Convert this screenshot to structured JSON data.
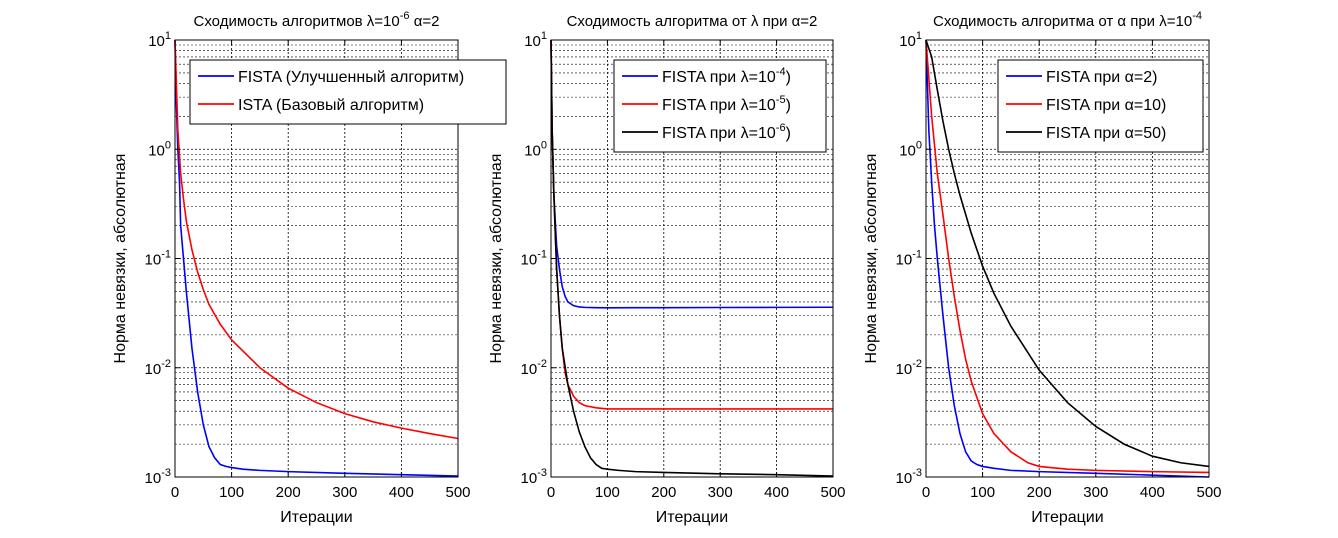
{
  "chart_data": [
    {
      "type": "line",
      "title": "Сходимость алгоритмов λ=10^-6 α=2",
      "title_parts": {
        "a": "Сходимость алгоритмов ",
        "sym1": "λ",
        "b": "=10",
        "sup": "-6",
        "c": " ",
        "sym2": "α",
        "d": "=2"
      },
      "xlabel": "Итерации",
      "ylabel": "Норма невязки, абсолютная",
      "xlim": [
        0,
        500
      ],
      "ylim": [
        0.001,
        10
      ],
      "yscale": "log",
      "grid": true,
      "legend_position": "top-right",
      "xticks": [
        "0",
        "100",
        "200",
        "300",
        "400",
        "500"
      ],
      "yticks": [
        {
          "base": "10",
          "exp": "-3"
        },
        {
          "base": "10",
          "exp": "-2"
        },
        {
          "base": "10",
          "exp": "-1"
        },
        {
          "base": "10",
          "exp": "0"
        },
        {
          "base": "10",
          "exp": "1"
        }
      ],
      "series": [
        {
          "name": "FISTA (Улучшенный алгоритм)",
          "legend_parts": {
            "a": "FISTA (Улучшенный алгоритм)"
          },
          "color": "#0000ff",
          "x": [
            0,
            2,
            5,
            8,
            10,
            15,
            20,
            30,
            40,
            50,
            60,
            70,
            80,
            90,
            100,
            120,
            150,
            200,
            300,
            400,
            500
          ],
          "y": [
            10,
            3,
            1,
            0.5,
            0.2,
            0.1,
            0.05,
            0.015,
            0.006,
            0.003,
            0.0019,
            0.0015,
            0.0013,
            0.00125,
            0.00122,
            0.00118,
            0.00115,
            0.00112,
            0.00108,
            0.00105,
            0.00102
          ]
        },
        {
          "name": "ISTA (Базовый алгоритм)",
          "legend_parts": {
            "a": "ISTA (Базовый алгоритм)"
          },
          "color": "#ff0000",
          "x": [
            0,
            5,
            10,
            15,
            20,
            30,
            40,
            50,
            60,
            80,
            100,
            150,
            200,
            250,
            300,
            350,
            400,
            450,
            500
          ],
          "y": [
            10,
            1.5,
            0.6,
            0.35,
            0.22,
            0.12,
            0.075,
            0.052,
            0.038,
            0.025,
            0.018,
            0.01,
            0.0065,
            0.0048,
            0.0038,
            0.0032,
            0.0028,
            0.0025,
            0.00225
          ]
        }
      ]
    },
    {
      "type": "line",
      "title": "Сходимость алгоритма от λ при α=2",
      "title_parts": {
        "a": "Сходимость алгоритма от ",
        "sym1": "λ",
        "b": " при ",
        "sup": "",
        "c": "",
        "sym2": "α",
        "d": "=2"
      },
      "xlabel": "Итерации",
      "ylabel": "Норма невязки, абсолютная",
      "xlim": [
        0,
        500
      ],
      "ylim": [
        0.001,
        10
      ],
      "yscale": "log",
      "grid": true,
      "legend_position": "top-right",
      "xticks": [
        "0",
        "100",
        "200",
        "300",
        "400",
        "500"
      ],
      "yticks": [
        {
          "base": "10",
          "exp": "-3"
        },
        {
          "base": "10",
          "exp": "-2"
        },
        {
          "base": "10",
          "exp": "-1"
        },
        {
          "base": "10",
          "exp": "0"
        },
        {
          "base": "10",
          "exp": "1"
        }
      ],
      "series": [
        {
          "name": "FISTA при λ=10^-4)",
          "legend_parts": {
            "a": "FISTA при ",
            "sym": "λ",
            "b": "=10",
            "sup": "-4",
            "c": ")"
          },
          "color": "#0000ff",
          "x": [
            0,
            2,
            5,
            8,
            10,
            15,
            20,
            25,
            30,
            40,
            50,
            60,
            80,
            100,
            200,
            300,
            400,
            500
          ],
          "y": [
            10,
            1.5,
            0.4,
            0.2,
            0.13,
            0.08,
            0.055,
            0.045,
            0.04,
            0.037,
            0.036,
            0.0357,
            0.0355,
            0.0354,
            0.0355,
            0.0356,
            0.0357,
            0.0358
          ]
        },
        {
          "name": "FISTA при λ=10^-5)",
          "legend_parts": {
            "a": "FISTA при ",
            "sym": "λ",
            "b": "=10",
            "sup": "-5",
            "c": ")"
          },
          "color": "#ff0000",
          "x": [
            0,
            2,
            5,
            8,
            10,
            15,
            20,
            25,
            30,
            40,
            50,
            60,
            80,
            100,
            150,
            200,
            300,
            400,
            500
          ],
          "y": [
            10,
            1.5,
            0.4,
            0.15,
            0.08,
            0.03,
            0.015,
            0.009,
            0.007,
            0.0055,
            0.0048,
            0.0045,
            0.0043,
            0.0042,
            0.0042,
            0.0042,
            0.0042,
            0.0042,
            0.0042
          ]
        },
        {
          "name": "FISTA при λ=10^-6)",
          "legend_parts": {
            "a": "FISTA при ",
            "sym": "λ",
            "b": "=10",
            "sup": "-6",
            "c": ")"
          },
          "color": "#000000",
          "x": [
            0,
            2,
            5,
            8,
            10,
            15,
            20,
            30,
            40,
            50,
            60,
            70,
            80,
            90,
            100,
            120,
            150,
            200,
            300,
            400,
            500
          ],
          "y": [
            10,
            1.5,
            0.4,
            0.15,
            0.08,
            0.03,
            0.015,
            0.007,
            0.004,
            0.0026,
            0.0019,
            0.0015,
            0.0013,
            0.0012,
            0.00118,
            0.00115,
            0.00112,
            0.0011,
            0.00107,
            0.00105,
            0.00102
          ]
        }
      ]
    },
    {
      "type": "line",
      "title": "Сходимость алгоритма от α при λ=10^-4",
      "title_parts": {
        "a": "Сходимость алгоритма от ",
        "sym1": "α",
        "b": " при ",
        "sup": "",
        "c": "",
        "sym2": "λ",
        "d": "=10",
        "sup2": "-4"
      },
      "xlabel": "Итерации",
      "ylabel": "Норма невязки, абсолютная",
      "xlim": [
        0,
        500
      ],
      "ylim": [
        0.001,
        10
      ],
      "yscale": "log",
      "grid": true,
      "legend_position": "top-right",
      "xticks": [
        "0",
        "100",
        "200",
        "300",
        "400",
        "500"
      ],
      "yticks": [
        {
          "base": "10",
          "exp": "-3"
        },
        {
          "base": "10",
          "exp": "-2"
        },
        {
          "base": "10",
          "exp": "-1"
        },
        {
          "base": "10",
          "exp": "0"
        },
        {
          "base": "10",
          "exp": "1"
        }
      ],
      "series": [
        {
          "name": "FISTA при α=2)",
          "legend_parts": {
            "a": "FISTA при ",
            "sym": "α",
            "b": "=2)",
            "sup": "",
            "c": ""
          },
          "color": "#0000ff",
          "x": [
            0,
            5,
            10,
            15,
            20,
            30,
            40,
            50,
            60,
            70,
            80,
            90,
            100,
            120,
            150,
            200,
            300,
            400,
            500
          ],
          "y": [
            10,
            1.5,
            0.5,
            0.2,
            0.1,
            0.03,
            0.01,
            0.0045,
            0.0025,
            0.0017,
            0.0014,
            0.0013,
            0.00125,
            0.0012,
            0.00115,
            0.00112,
            0.00108,
            0.00104,
            0.001
          ]
        },
        {
          "name": "FISTA при α=10)",
          "legend_parts": {
            "a": "FISTA при ",
            "sym": "α",
            "b": "=10)",
            "sup": "",
            "c": ""
          },
          "color": "#ff0000",
          "x": [
            0,
            10,
            20,
            30,
            40,
            50,
            60,
            70,
            80,
            100,
            120,
            150,
            180,
            200,
            250,
            300,
            400,
            500
          ],
          "y": [
            10,
            2,
            0.6,
            0.25,
            0.1,
            0.045,
            0.022,
            0.012,
            0.0075,
            0.0038,
            0.0025,
            0.0017,
            0.00135,
            0.00125,
            0.00118,
            0.00115,
            0.00112,
            0.0011
          ]
        },
        {
          "name": "FISTA при α=50)",
          "legend_parts": {
            "a": "FISTA при ",
            "sym": "α",
            "b": "=50)",
            "sup": "",
            "c": ""
          },
          "color": "#000000",
          "x": [
            0,
            10,
            20,
            30,
            40,
            50,
            60,
            80,
            100,
            120,
            150,
            200,
            250,
            300,
            350,
            400,
            450,
            500
          ],
          "y": [
            10,
            7,
            3.5,
            1.8,
            1.0,
            0.6,
            0.38,
            0.17,
            0.085,
            0.048,
            0.024,
            0.0095,
            0.0048,
            0.0029,
            0.002,
            0.00155,
            0.00135,
            0.00125
          ]
        }
      ]
    }
  ]
}
